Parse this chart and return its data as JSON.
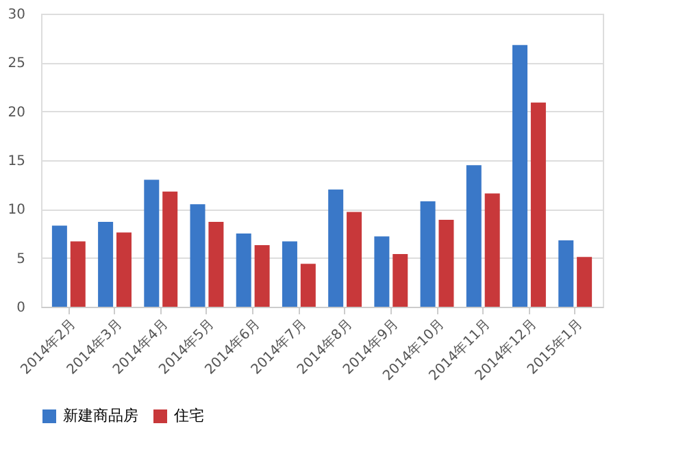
{
  "chart_data": {
    "type": "bar",
    "categories": [
      "2014年2月",
      "2014年3月",
      "2014年4月",
      "2014年5月",
      "2014年6月",
      "2014年7月",
      "2014年8月",
      "2014年9月",
      "2014年10月",
      "2014年11月",
      "2014年12月",
      "2015年1月"
    ],
    "series": [
      {
        "name": "新建商品房",
        "color": "#3a78c8",
        "values": [
          8.3,
          8.7,
          13,
          10.5,
          7.5,
          6.7,
          12,
          7.2,
          10.8,
          14.5,
          26.8,
          6.8
        ]
      },
      {
        "name": "住宅",
        "color": "#c8383a",
        "values": [
          6.7,
          7.6,
          11.8,
          8.7,
          6.3,
          4.4,
          9.7,
          5.4,
          8.9,
          11.6,
          20.9,
          5.1
        ]
      }
    ],
    "ylim": [
      0,
      30
    ],
    "yticks": [
      0,
      5,
      10,
      15,
      20,
      25,
      30
    ],
    "grid": "y",
    "legend": "bottom"
  }
}
